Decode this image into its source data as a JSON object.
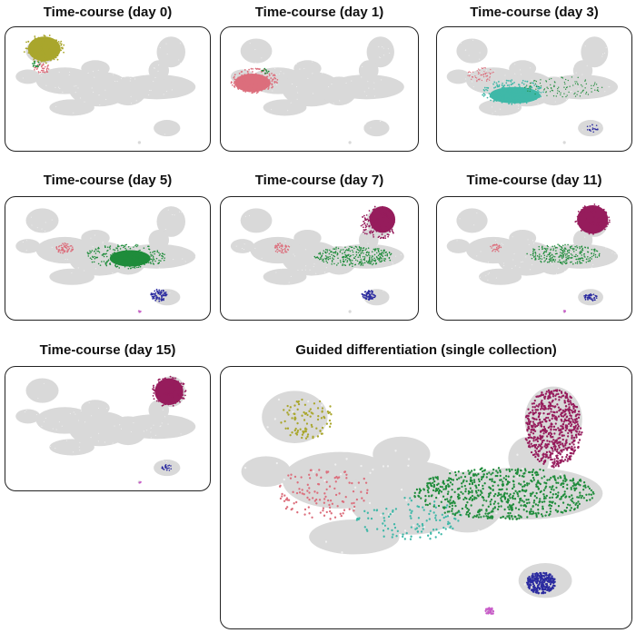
{
  "colors": {
    "background_cells": "#d9d9d9",
    "day0": "#a9a62c",
    "day1": "#dc6e7c",
    "day3": "#3fb8a8",
    "day5": "#1f8c3b",
    "day7_15": "#961c5c",
    "blue": "#2b2ba0",
    "magenta": "#c85ac8"
  },
  "chart_data": [
    {
      "type": "scatter",
      "title": "Time-course (day 0)",
      "highlight": [
        "day0"
      ]
    },
    {
      "type": "scatter",
      "title": "Time-course (day 1)",
      "highlight": [
        "day1"
      ]
    },
    {
      "type": "scatter",
      "title": "Time-course (day 3)",
      "highlight": [
        "day3"
      ]
    },
    {
      "type": "scatter",
      "title": "Time-course (day 5)",
      "highlight": [
        "day5"
      ]
    },
    {
      "type": "scatter",
      "title": "Time-course (day 7)",
      "highlight": [
        "day7"
      ]
    },
    {
      "type": "scatter",
      "title": "Time-course (day 11)",
      "highlight": [
        "day11"
      ]
    },
    {
      "type": "scatter",
      "title": "Time-course (day 15)",
      "highlight": [
        "day15"
      ]
    },
    {
      "type": "scatter",
      "title": "Guided differentiation (single collection)",
      "highlight": [
        "guided"
      ]
    }
  ]
}
